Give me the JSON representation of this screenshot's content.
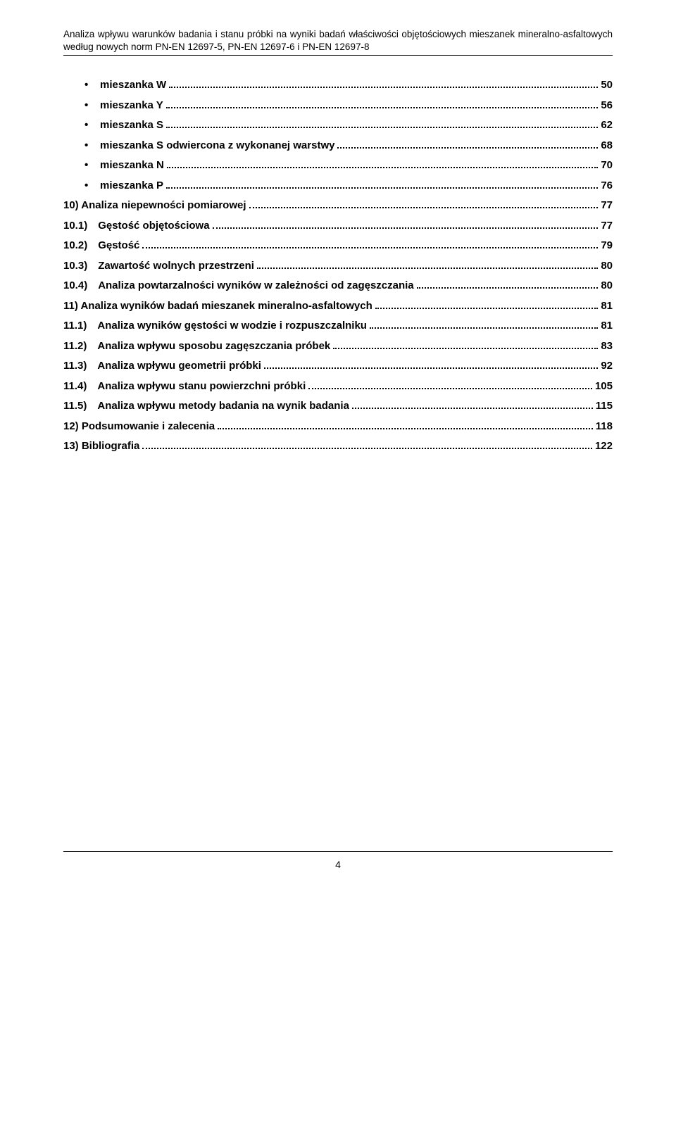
{
  "header": {
    "line1": "Analiza wpływu warunków badania i stanu próbki na wyniki badań właściwości objętościowych mieszanek",
    "line2": "mineralno-asfaltowych według nowych norm PN-EN 12697-5, PN-EN 12697-6 i PN-EN 12697-8"
  },
  "toc": [
    {
      "type": "bullet",
      "label": "mieszanka W",
      "page": "50",
      "bold": true
    },
    {
      "type": "bullet",
      "label": "mieszanka Y",
      "page": "56",
      "bold": true
    },
    {
      "type": "bullet",
      "label": "mieszanka S",
      "page": "62",
      "bold": true
    },
    {
      "type": "bullet",
      "label": "mieszanka S odwiercona z wykonanej warstwy",
      "page": "68",
      "bold": true
    },
    {
      "type": "bullet",
      "label": "mieszanka N",
      "page": "70",
      "bold": true
    },
    {
      "type": "bullet",
      "label": "mieszanka P",
      "page": "76",
      "bold": true
    },
    {
      "type": "num",
      "label": "10) Analiza niepewności pomiarowej",
      "page": "77",
      "bold": true
    },
    {
      "type": "sub",
      "label": "10.1) Gęstość objętościowa",
      "page": "77",
      "bold": true
    },
    {
      "type": "sub",
      "label": "10.2) Gęstość",
      "page": "79",
      "bold": true
    },
    {
      "type": "sub",
      "label": "10.3) Zawartość wolnych przestrzeni",
      "page": "80",
      "bold": true
    },
    {
      "type": "sub",
      "label": "10.4) Analiza powtarzalności wyników w zależności od zagęszczania",
      "page": "80",
      "bold": true
    },
    {
      "type": "num",
      "label": "11) Analiza wyników badań mieszanek mineralno-asfaltowych",
      "page": "81",
      "bold": true
    },
    {
      "type": "sub",
      "label": "11.1) Analiza wyników gęstości w wodzie i rozpuszczalniku",
      "page": "81",
      "bold": true
    },
    {
      "type": "sub",
      "label": "11.2) Analiza wpływu sposobu zagęszczania próbek",
      "page": "83",
      "bold": true
    },
    {
      "type": "sub",
      "label": "11.3) Analiza wpływu geometrii próbki",
      "page": "92",
      "bold": true
    },
    {
      "type": "sub",
      "label": "11.4) Analiza wpływu stanu powierzchni próbki",
      "page": "105",
      "bold": true
    },
    {
      "type": "sub",
      "label": "11.5) Analiza wpływu metody badania na wynik badania",
      "page": "115",
      "bold": true
    },
    {
      "type": "num",
      "label": "12) Podsumowanie i zalecenia",
      "page": "118",
      "bold": true
    },
    {
      "type": "num",
      "label": "13) Bibliografia",
      "page": "122",
      "bold": true
    }
  ],
  "pageNumber": "4"
}
